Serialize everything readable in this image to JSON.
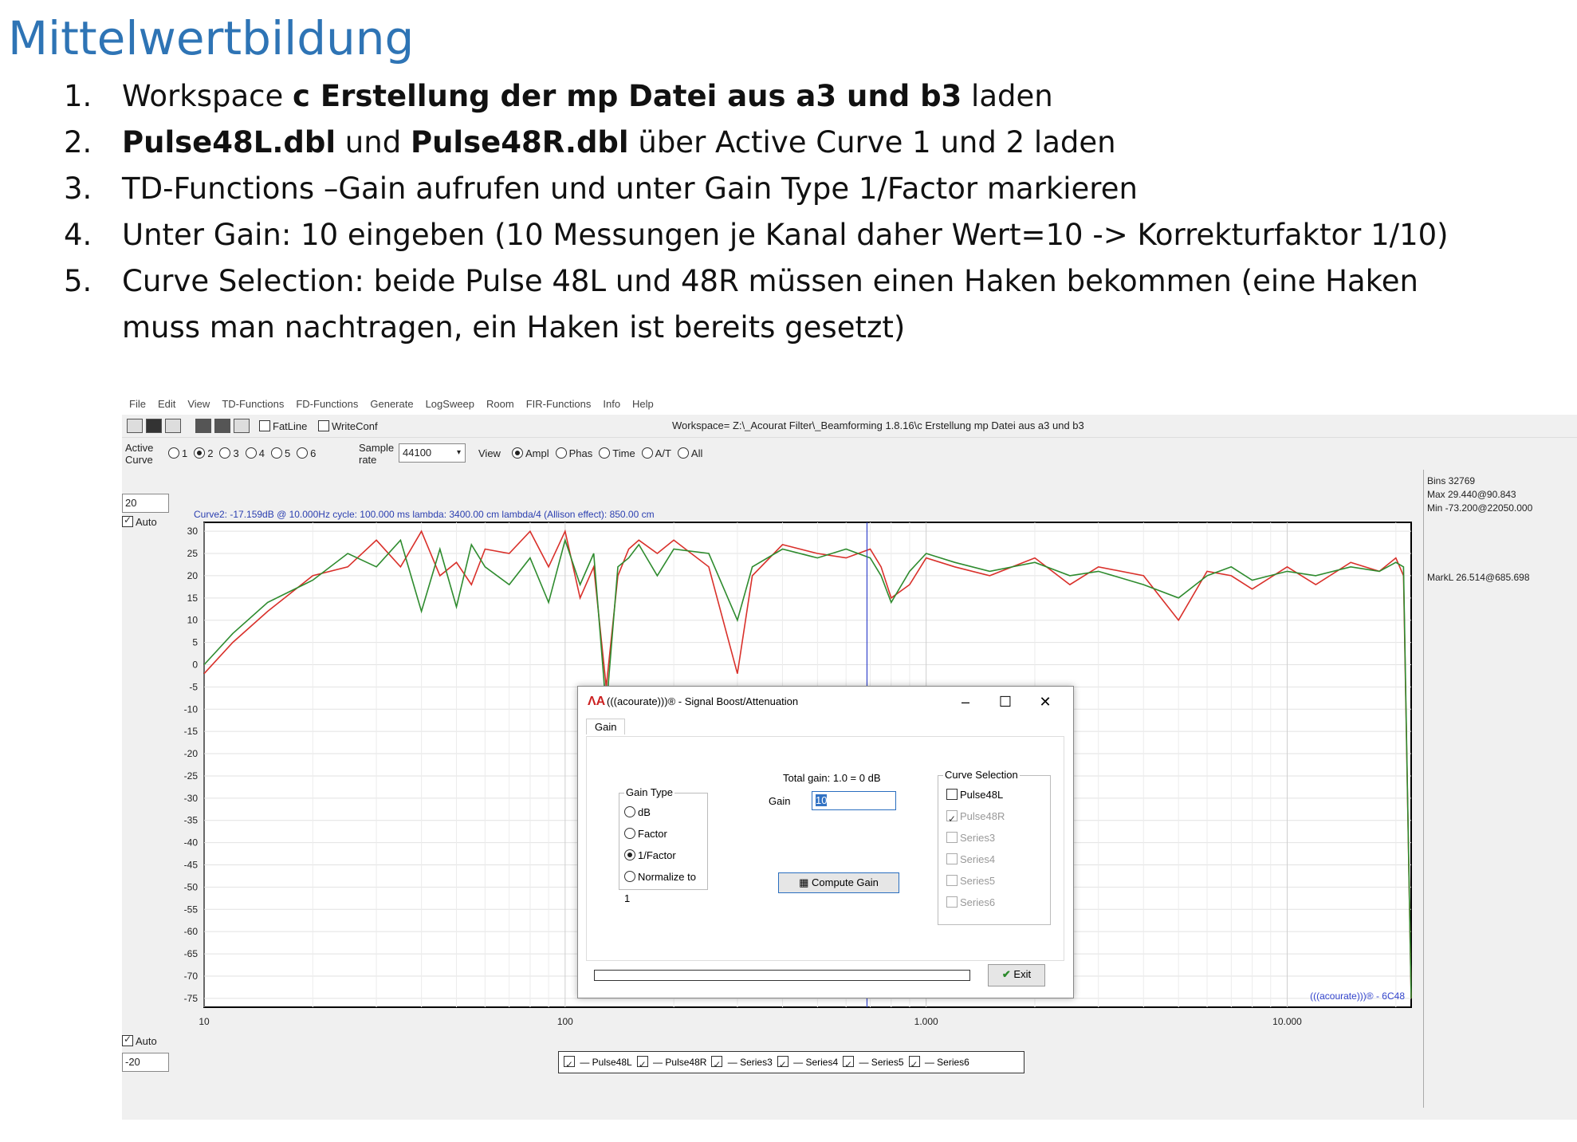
{
  "title": "Mittelwertbildung",
  "steps": [
    {
      "num": "1.",
      "parts": [
        {
          "t": "Workspace  ",
          "b": false
        },
        {
          "t": "c Erstellung der mp Datei aus a3 und b3",
          "b": true
        },
        {
          "t": " laden",
          "b": false
        }
      ]
    },
    {
      "num": "2.",
      "parts": [
        {
          "t": "Pulse48L.dbl",
          "b": true
        },
        {
          "t": " und ",
          "b": false
        },
        {
          "t": "Pulse48R.dbl",
          "b": true
        },
        {
          "t": "  über Active Curve 1 und 2 laden",
          "b": false
        }
      ]
    },
    {
      "num": "3.",
      "parts": [
        {
          "t": "TD-Functions –Gain aufrufen und unter Gain Type  1/Factor markieren",
          "b": false
        }
      ]
    },
    {
      "num": "4.",
      "parts": [
        {
          "t": "Unter Gain: 10 eingeben (10 Messungen je Kanal daher Wert=10 -> Korrekturfaktor 1/10)",
          "b": false
        }
      ]
    },
    {
      "num": "5.",
      "parts": [
        {
          "t": "Curve Selection:  beide Pulse 48L und 48R müssen einen Haken bekommen (eine Haken muss man nachtragen, ein Haken ist bereits gesetzt)",
          "b": false
        }
      ]
    }
  ],
  "app": {
    "menu": [
      "File",
      "Edit",
      "View",
      "TD-Functions",
      "FD-Functions",
      "Generate",
      "LogSweep",
      "Room",
      "FIR-Functions",
      "Info",
      "Help"
    ],
    "toolbar": {
      "fatline": "FatLine",
      "writeconf": "WriteConf"
    },
    "workspace": "Workspace= Z:\\_Acourat Filter\\_Beamforming 1.8.16\\c Erstellung  mp Datei aus a3 und b3",
    "active_curve_label_1": "Active",
    "active_curve_label_2": "Curve",
    "active_curves": [
      "1",
      "2",
      "3",
      "4",
      "5",
      "6"
    ],
    "active_selected": "2",
    "sample_rate_label_1": "Sample",
    "sample_rate_label_2": "rate",
    "sample_rate": "44100",
    "view_label": "View",
    "view_options": [
      "Ampl",
      "Phas",
      "Time",
      "A/T",
      "All"
    ],
    "view_selected": "Ampl",
    "ymax_input": "20",
    "ymin_input": "-20",
    "auto_top": "Auto",
    "auto_bottom": "Auto",
    "curve_info": "Curve2:  -17.159dB @ 10.000Hz   cycle: 100.000 ms   lambda: 3400.00 cm  lambda/4 (Allison effect): 850.00 cm",
    "side_info": [
      "Bins 32769",
      "Max 29.440@90.843",
      "Min -73.200@22050.000"
    ],
    "markl": "MarkL 26.514@685.698",
    "watermark": "(((acourate)))® - 6C48",
    "legend": [
      "Pulse48L",
      "Pulse48R",
      "Series3",
      "Series4",
      "Series5",
      "Series6"
    ]
  },
  "chart_data": {
    "type": "line",
    "xscale": "log",
    "xlim": [
      10,
      22050
    ],
    "ylim": [
      -77,
      32
    ],
    "yticks": [
      30,
      25,
      20,
      15,
      10,
      5,
      0,
      -5,
      -10,
      -15,
      -20,
      -25,
      -30,
      -35,
      -40,
      -45,
      -50,
      -55,
      -60,
      -65,
      -70,
      -75
    ],
    "xticks": [
      {
        "v": 10,
        "label": "10"
      },
      {
        "v": 100,
        "label": "100"
      },
      {
        "v": 1000,
        "label": "1.000"
      },
      {
        "v": 10000,
        "label": "10.000"
      }
    ],
    "cursor_x": 685.698,
    "series": [
      {
        "name": "Pulse48L",
        "color": "#d9302a",
        "x": [
          10,
          12,
          15,
          20,
          25,
          30,
          35,
          40,
          45,
          50,
          55,
          60,
          70,
          80,
          90,
          100,
          110,
          120,
          130,
          140,
          150,
          160,
          180,
          200,
          250,
          300,
          330,
          400,
          500,
          600,
          700,
          750,
          800,
          900,
          1000,
          1200,
          1500,
          2000,
          2500,
          3000,
          4000,
          5000,
          6000,
          7000,
          8000,
          10000,
          12000,
          15000,
          18000,
          20000,
          21000,
          22050
        ],
        "y": [
          -2,
          5,
          12,
          20,
          22,
          28,
          22,
          30,
          20,
          23,
          18,
          26,
          25,
          30,
          22,
          30,
          15,
          22,
          -5,
          20,
          26,
          28,
          25,
          28,
          22,
          -2,
          20,
          27,
          25,
          24,
          26,
          22,
          15,
          18,
          24,
          22,
          20,
          24,
          18,
          22,
          20,
          10,
          21,
          20,
          17,
          22,
          18,
          23,
          21,
          24,
          20,
          -75
        ]
      },
      {
        "name": "Pulse48R",
        "color": "#2e8b2e",
        "x": [
          10,
          12,
          15,
          20,
          25,
          30,
          35,
          40,
          45,
          50,
          55,
          60,
          70,
          80,
          90,
          100,
          110,
          120,
          130,
          140,
          150,
          160,
          180,
          200,
          250,
          300,
          330,
          400,
          500,
          600,
          700,
          750,
          800,
          900,
          1000,
          1200,
          1500,
          2000,
          2500,
          3000,
          4000,
          5000,
          6000,
          7000,
          8000,
          10000,
          12000,
          15000,
          18000,
          20000,
          21000,
          22050
        ],
        "y": [
          0,
          7,
          14,
          19,
          25,
          22,
          28,
          12,
          26,
          13,
          27,
          22,
          18,
          24,
          14,
          28,
          18,
          25,
          -10,
          22,
          24,
          27,
          20,
          26,
          25,
          10,
          22,
          26,
          24,
          26,
          24,
          20,
          14,
          21,
          25,
          23,
          21,
          23,
          20,
          21,
          18,
          15,
          20,
          22,
          19,
          21,
          20,
          22,
          21,
          23,
          22,
          -75
        ]
      }
    ]
  },
  "dialog": {
    "title": "(((acourate)))® - Signal Boost/Attenuation",
    "tab": "Gain",
    "gain_type_label": "Gain Type",
    "gain_types": [
      "dB",
      "Factor",
      "1/Factor",
      "Normalize to 1"
    ],
    "gain_type_selected": "1/Factor",
    "total_gain": "Total gain: 1.0  =  0 dB",
    "gain_label": "Gain",
    "gain_value": "10",
    "compute_button": "Compute Gain",
    "curve_selection_label": "Curve Selection",
    "curve_selection": [
      {
        "name": "Pulse48L",
        "checked": false,
        "enabled": true
      },
      {
        "name": "Pulse48R",
        "checked": true,
        "enabled": false
      },
      {
        "name": "Series3",
        "checked": false,
        "enabled": false
      },
      {
        "name": "Series4",
        "checked": false,
        "enabled": false
      },
      {
        "name": "Series5",
        "checked": false,
        "enabled": false
      },
      {
        "name": "Series6",
        "checked": false,
        "enabled": false
      }
    ],
    "exit_button": "Exit"
  }
}
